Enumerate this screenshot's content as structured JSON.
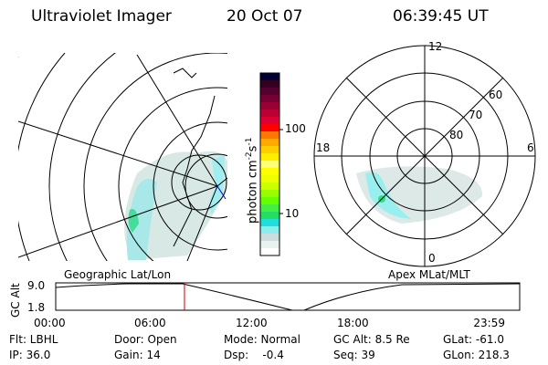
{
  "header": {
    "instrument": "Ultraviolet Imager",
    "date": "20 Oct 07",
    "time": "06:39:45 UT"
  },
  "colorbar": {
    "label": "photon cm-2s-1",
    "label_main": "photon cm",
    "label_exp1": "-2",
    "label_s": "s",
    "label_exp2": "-1",
    "ticks": [
      "100",
      "10"
    ],
    "colors": [
      "#000033",
      "#330022",
      "#550033",
      "#770033",
      "#990033",
      "#bb0033",
      "#dd0033",
      "#ff0000",
      "#ff7700",
      "#ffaa00",
      "#ffcc00",
      "#ffee00",
      "#ffff77",
      "#ffff00",
      "#eeff00",
      "#ccff00",
      "#99ff00",
      "#66ff00",
      "#44ee44",
      "#22dd66",
      "#22dddd",
      "#88eeee",
      "#ccdddd",
      "#e8f2ee",
      "#ffffff"
    ]
  },
  "geo_map": {
    "label": "Geographic Lat/Lon"
  },
  "polar_map": {
    "label": "Apex MLat/MLT",
    "mlt_labels": [
      "12",
      "6",
      "0",
      "18"
    ],
    "lat_labels": [
      "80",
      "70",
      "60"
    ]
  },
  "altitude_plot": {
    "ylabel": "GC Alt",
    "yticks": [
      "9.0",
      "1.8"
    ],
    "xticks": [
      "00:00",
      "06:00",
      "12:00",
      "18:00",
      "23:59"
    ],
    "current_time_hours": 6.66
  },
  "info": {
    "flt": "Flt: LBHL",
    "ip": "IP: 36.0",
    "door": "Door: Open",
    "gain": "Gain: 14",
    "mode": "Mode: Normal",
    "dsp": "Dsp:    -0.4",
    "gcalt": "GC Alt: 8.5 Re",
    "seq": "Seq: 39",
    "glat": "GLat: -61.0",
    "glon": "GLon: 218.3"
  }
}
